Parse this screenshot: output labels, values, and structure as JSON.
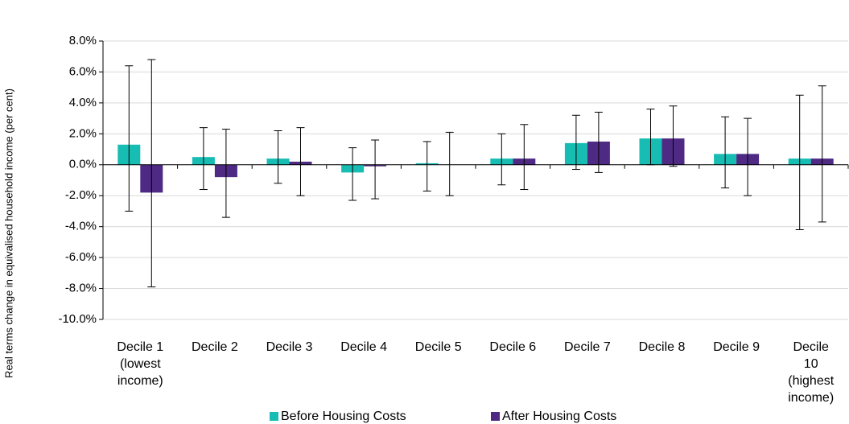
{
  "chart_data": {
    "type": "bar",
    "y_label": "Real terms change in equivalised household income (per cent)",
    "categories": [
      "Decile 1\n(lowest\nincome)",
      "Decile 2",
      "Decile 3",
      "Decile 4",
      "Decile 5",
      "Decile 6",
      "Decile 7",
      "Decile 8",
      "Decile 9",
      "Decile\n10\n(highest\nincome)"
    ],
    "series": [
      {
        "name": "Before Housing Costs",
        "color": "#17bdb3",
        "values": [
          1.3,
          0.5,
          0.4,
          -0.5,
          0.1,
          0.4,
          1.4,
          1.7,
          0.7,
          0.4
        ],
        "lower": [
          -3.0,
          -1.6,
          -1.2,
          -2.3,
          -1.7,
          -1.3,
          -0.3,
          0.0,
          -1.5,
          -4.2
        ],
        "upper": [
          6.4,
          2.4,
          2.2,
          1.1,
          1.5,
          2.0,
          3.2,
          3.6,
          3.1,
          4.5
        ]
      },
      {
        "name": "After Housing Costs",
        "color": "#4e2a84",
        "values": [
          -1.8,
          -0.8,
          0.2,
          -0.1,
          0.0,
          0.4,
          1.5,
          1.7,
          0.7,
          0.4
        ],
        "lower": [
          -7.9,
          -3.4,
          -2.0,
          -2.2,
          -2.0,
          -1.6,
          -0.5,
          -0.1,
          -2.0,
          -3.7
        ],
        "upper": [
          6.8,
          2.3,
          2.4,
          1.6,
          2.1,
          2.6,
          3.4,
          3.8,
          3.0,
          5.1
        ]
      }
    ],
    "ylim": [
      -10,
      8
    ],
    "yticks": [
      {
        "value": -10,
        "label": "-10.0%"
      },
      {
        "value": -8,
        "label": "-8.0%"
      },
      {
        "value": -6,
        "label": "-6.0%"
      },
      {
        "value": -4,
        "label": "-4.0%"
      },
      {
        "value": -2,
        "label": "-2.0%"
      },
      {
        "value": 0,
        "label": "0.0%"
      },
      {
        "value": 2,
        "label": "2.0%"
      },
      {
        "value": 4,
        "label": "4.0%"
      },
      {
        "value": 6,
        "label": "6.0%"
      },
      {
        "value": 8,
        "label": "8.0%"
      }
    ],
    "grid": true,
    "legend": "bottom"
  }
}
